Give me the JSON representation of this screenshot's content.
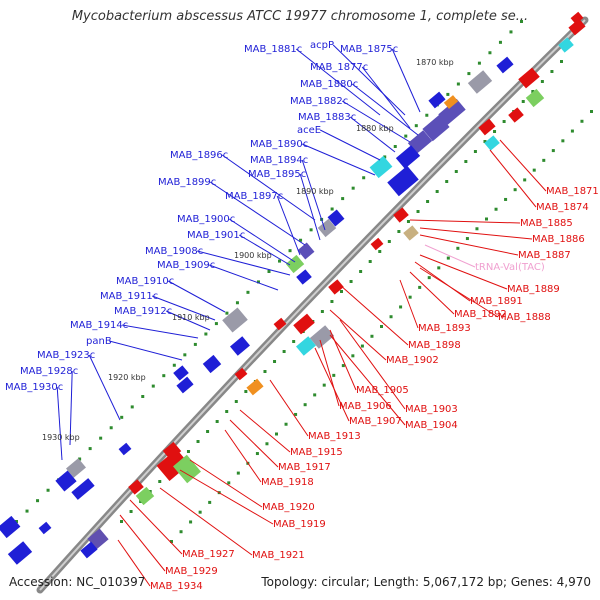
{
  "title": "Mycobacterium abscessus ATCC 19977 chromosome 1, complete se...",
  "footer": {
    "accession": "Accession: NC_010397",
    "summary": "Topology: circular; Length: 5,067,172 bp; Genes: 4,970"
  },
  "scale_labels": [
    "1870 kbp",
    "1880 kbp",
    "1890 kbp",
    "1900 kbp",
    "1910 kbp",
    "1920 kbp",
    "1930 kbp"
  ],
  "forward_labels": [
    "MAB_1881c",
    "acpP",
    "MAB_1875c",
    "MAB_1877c",
    "MAB_1880c",
    "MAB_1882c",
    "MAB_1883c",
    "aceE",
    "MAB_1890c",
    "MAB_1896c",
    "MAB_1894c",
    "MAB_1895c",
    "MAB_1899c",
    "MAB_1897c",
    "MAB_1900c",
    "MAB_1901c",
    "MAB_1908c",
    "MAB_1909c",
    "MAB_1910c",
    "MAB_1911c",
    "MAB_1912c",
    "MAB_1914c",
    "panB",
    "MAB_1923c",
    "MAB_1928c",
    "MAB_1930c"
  ],
  "reverse_labels": [
    "MAB_1871",
    "MAB_1874",
    "MAB_1885",
    "MAB_1886",
    "MAB_1887",
    "tRNA-Val(TAC)",
    "MAB_1889",
    "MAB_1891",
    "MAB_1892",
    "MAB_1888",
    "MAB_1893",
    "MAB_1898",
    "MAB_1902",
    "MAB_1905",
    "MAB_1903",
    "MAB_1906",
    "MAB_1907",
    "MAB_1904",
    "MAB_1913",
    "MAB_1915",
    "MAB_1917",
    "MAB_1918",
    "MAB_1920",
    "MAB_1919",
    "MAB_1921",
    "MAB_1927",
    "MAB_1929",
    "MAB_1934"
  ],
  "colors": {
    "forward": "#1f1fd6",
    "reverse": "#e01010",
    "trna": "#f0a0d0",
    "backbone": "#888888",
    "gc_marker": "#2e8b2e"
  }
}
